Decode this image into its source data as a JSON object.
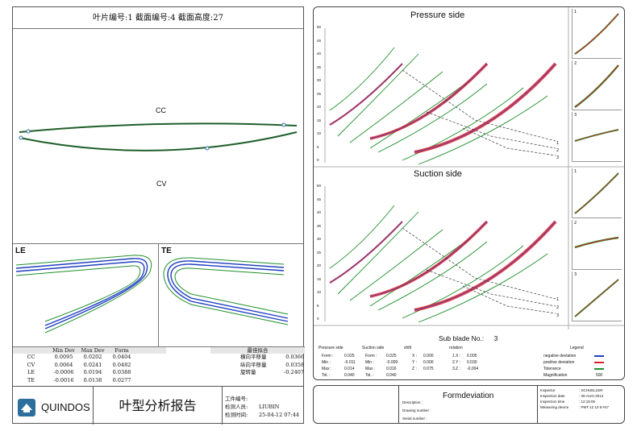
{
  "left": {
    "title": "叶片编号:1  截面编号:4  截面高度:27",
    "section_labels": {
      "cc": "CC",
      "cv": "CV"
    },
    "le_title": "LE",
    "te_title": "TE",
    "deviation_table": {
      "headers": [
        "",
        "Min Dev",
        "Max Dev",
        "Form"
      ],
      "rows": [
        [
          "CC",
          "0.0095",
          "0.0202",
          "0.0404"
        ],
        [
          "CV",
          "0.0064",
          "0.0241",
          "0.0482"
        ],
        [
          "LE",
          "-0.0006",
          "0.0194",
          "0.0388"
        ],
        [
          "TE",
          "-0.0016",
          "0.0138",
          "0.0277"
        ]
      ]
    },
    "fit_table": {
      "header": "最佳拟合",
      "rows": [
        {
          "label": "横向平移量",
          "value": "0.0366"
        },
        {
          "label": "纵向平移量",
          "value": "0.0358"
        },
        {
          "label": "旋转量",
          "value": "-0.2407"
        }
      ]
    },
    "footer": {
      "logo_text": "QUINDOS",
      "report_title": "叶型分析报告",
      "info": [
        {
          "label": "工件编号:",
          "value": ""
        },
        {
          "label": "检测人员:",
          "value": "LIUBIN"
        },
        {
          "label": "检测时间:",
          "value": "25-04-12 07:44"
        }
      ]
    }
  },
  "right": {
    "pressure_title": "Pressure side",
    "suction_title": "Suction side",
    "y_ticks": [
      "50",
      "45",
      "40",
      "35",
      "30",
      "25",
      "20",
      "15",
      "10",
      "5",
      "0"
    ],
    "line_labels": [
      "1",
      "2",
      "3"
    ],
    "thumb_numbers": [
      "1",
      "2",
      "3"
    ],
    "stats": {
      "subblade_label": "Sub blade No.:",
      "subblade_no": "3",
      "pressure_header": "Pressure side",
      "suction_header": "Suction side",
      "shift_header": "shift",
      "rotation_header": "rotation",
      "legend_header": "Legend",
      "pressure": [
        [
          "Form :",
          "0.025"
        ],
        [
          "Min :",
          "-0.011"
        ],
        [
          "Max :",
          "0.014"
        ],
        [
          "Tol. :",
          "0.040"
        ]
      ],
      "suction": [
        [
          "Form :",
          "0.025"
        ],
        [
          "Min :",
          "-0.009"
        ],
        [
          "Max :",
          "0.016"
        ],
        [
          "Tol. :",
          "0.040"
        ]
      ],
      "shift": [
        [
          "X :",
          "0.000"
        ],
        [
          "Y :",
          "0.000"
        ],
        [
          "Z :",
          "0.075"
        ]
      ],
      "rotation": [
        [
          "1.X :",
          "0.005"
        ],
        [
          "2.Y :",
          "0.030"
        ],
        [
          "3.Z :",
          "-0.004"
        ]
      ],
      "legend": [
        {
          "label": "negative deviation",
          "color": "#1f3fbf"
        },
        {
          "label": "positive deviation",
          "color": "#e0202a"
        },
        {
          "label": "Tolerance",
          "color": "#1e8f2a"
        },
        {
          "label": "Magnification",
          "value": "500"
        }
      ]
    },
    "footer": {
      "title": "Formdeviation",
      "fields": [
        "Description :",
        "Drawing number :",
        "Serial number :"
      ],
      "inspector": [
        {
          "label": "Inspector",
          "value": ": SCHUELLER"
        },
        {
          "label": "Inspection date",
          "value": ": 30-AUG-2013"
        },
        {
          "label": "Inspection time",
          "value": ": 12:19:05"
        },
        {
          "label": "Measuring device",
          "value": ": PMT 12 10 8 #47"
        }
      ]
    }
  },
  "colors": {
    "tolerance": "#1e8f2a",
    "positive": "#e0202a",
    "negative": "#1f3fbf",
    "profile": "#1f5f2a",
    "logo": "#2d6f9c"
  }
}
